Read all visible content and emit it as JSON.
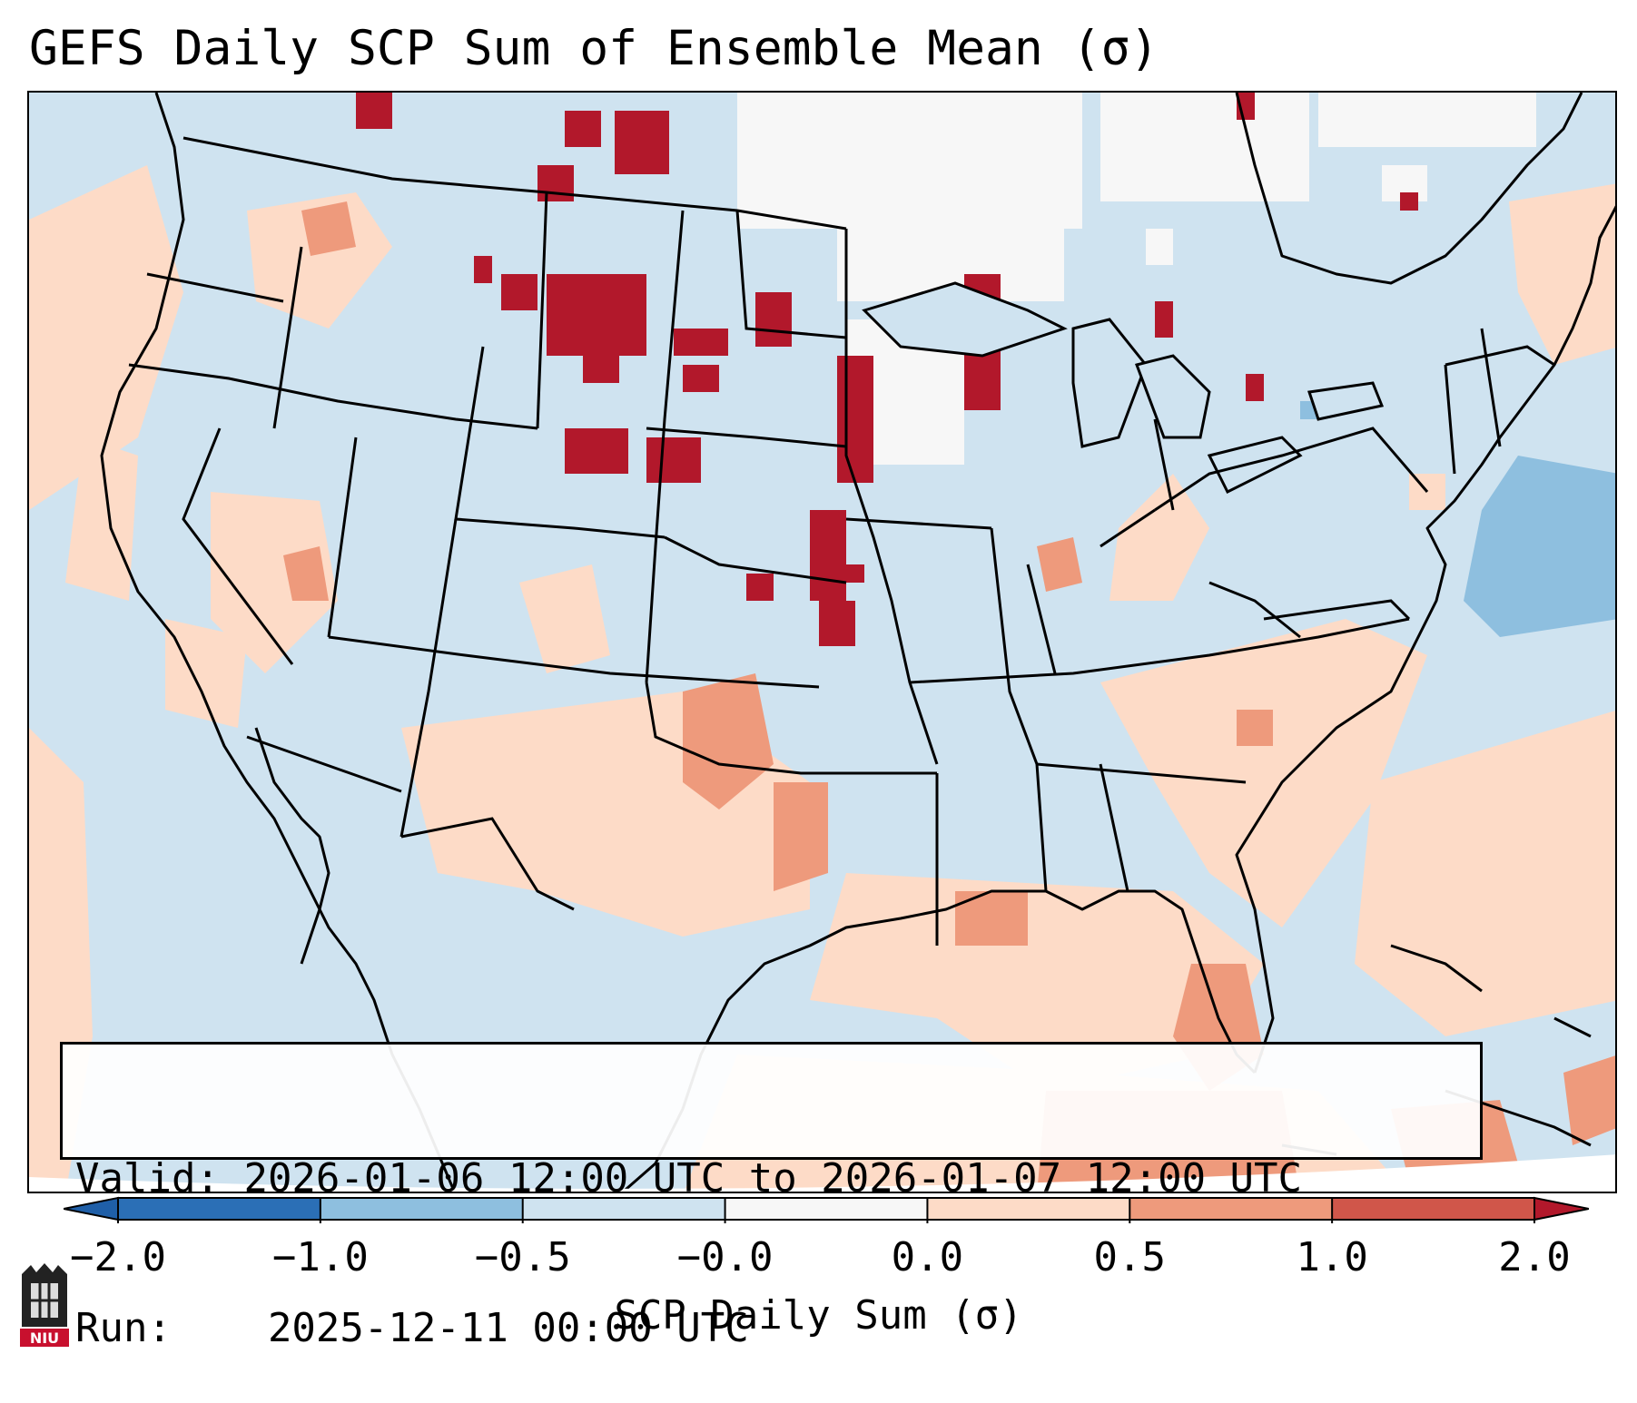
{
  "title": "GEFS Daily SCP Sum of Ensemble Mean (σ)",
  "info": {
    "valid_label": "Valid:",
    "valid_value": "2026-01-06 12:00 UTC to 2026-01-07 12:00 UTC",
    "run_label": "Run:",
    "run_value": "2025-12-11 00:00 UTC"
  },
  "colorbar": {
    "label": "SCP Daily Sum (σ)",
    "ticks": [
      "−2.0",
      "−1.0",
      "−0.5",
      "−0.0",
      "0.0",
      "0.5",
      "1.0",
      "2.0"
    ],
    "bins": [
      {
        "color": "#2b6fb6"
      },
      {
        "color": "#8ebfdf"
      },
      {
        "color": "#cfe3f0"
      },
      {
        "color": "#f7f7f7"
      },
      {
        "color": "#fddbc7"
      },
      {
        "color": "#ee9a7c"
      },
      {
        "color": "#d0564a"
      }
    ],
    "extend_low_color": "#1f5fa8",
    "extend_high_color": "#b2182b"
  },
  "map": {
    "ocean_color": "#cfe3f0",
    "land_color": "#cfe3f0",
    "region": "CONUS",
    "layers": [
      "coastlines",
      "state-borders",
      "country-borders",
      "great-lakes"
    ]
  },
  "logo": {
    "text": "NIU",
    "color": "#c8102e"
  }
}
